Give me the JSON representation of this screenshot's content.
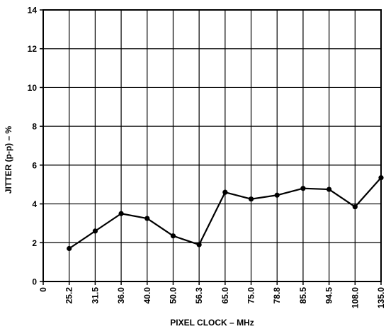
{
  "chart_data": {
    "type": "line",
    "title": "",
    "xlabel": "PIXEL CLOCK – MHz",
    "ylabel": "JITTER (p-p) – %",
    "x_origin_label": "0",
    "categories": [
      "25.2",
      "31.5",
      "36.0",
      "40.0",
      "50.0",
      "56.3",
      "65.0",
      "75.0",
      "78.8",
      "85.5",
      "94.5",
      "108.0",
      "135.0"
    ],
    "series": [
      {
        "values": [
          1.7,
          2.6,
          3.5,
          3.25,
          2.35,
          1.9,
          4.6,
          4.25,
          4.45,
          4.8,
          4.75,
          3.85,
          5.35
        ]
      }
    ],
    "ylim": [
      0,
      14
    ],
    "yticks": [
      0,
      2,
      4,
      6,
      8,
      10,
      12,
      14
    ],
    "grid": true,
    "legend": "none",
    "colors": {
      "line": "#000000",
      "grid": "#000000",
      "frame": "#000000"
    }
  }
}
